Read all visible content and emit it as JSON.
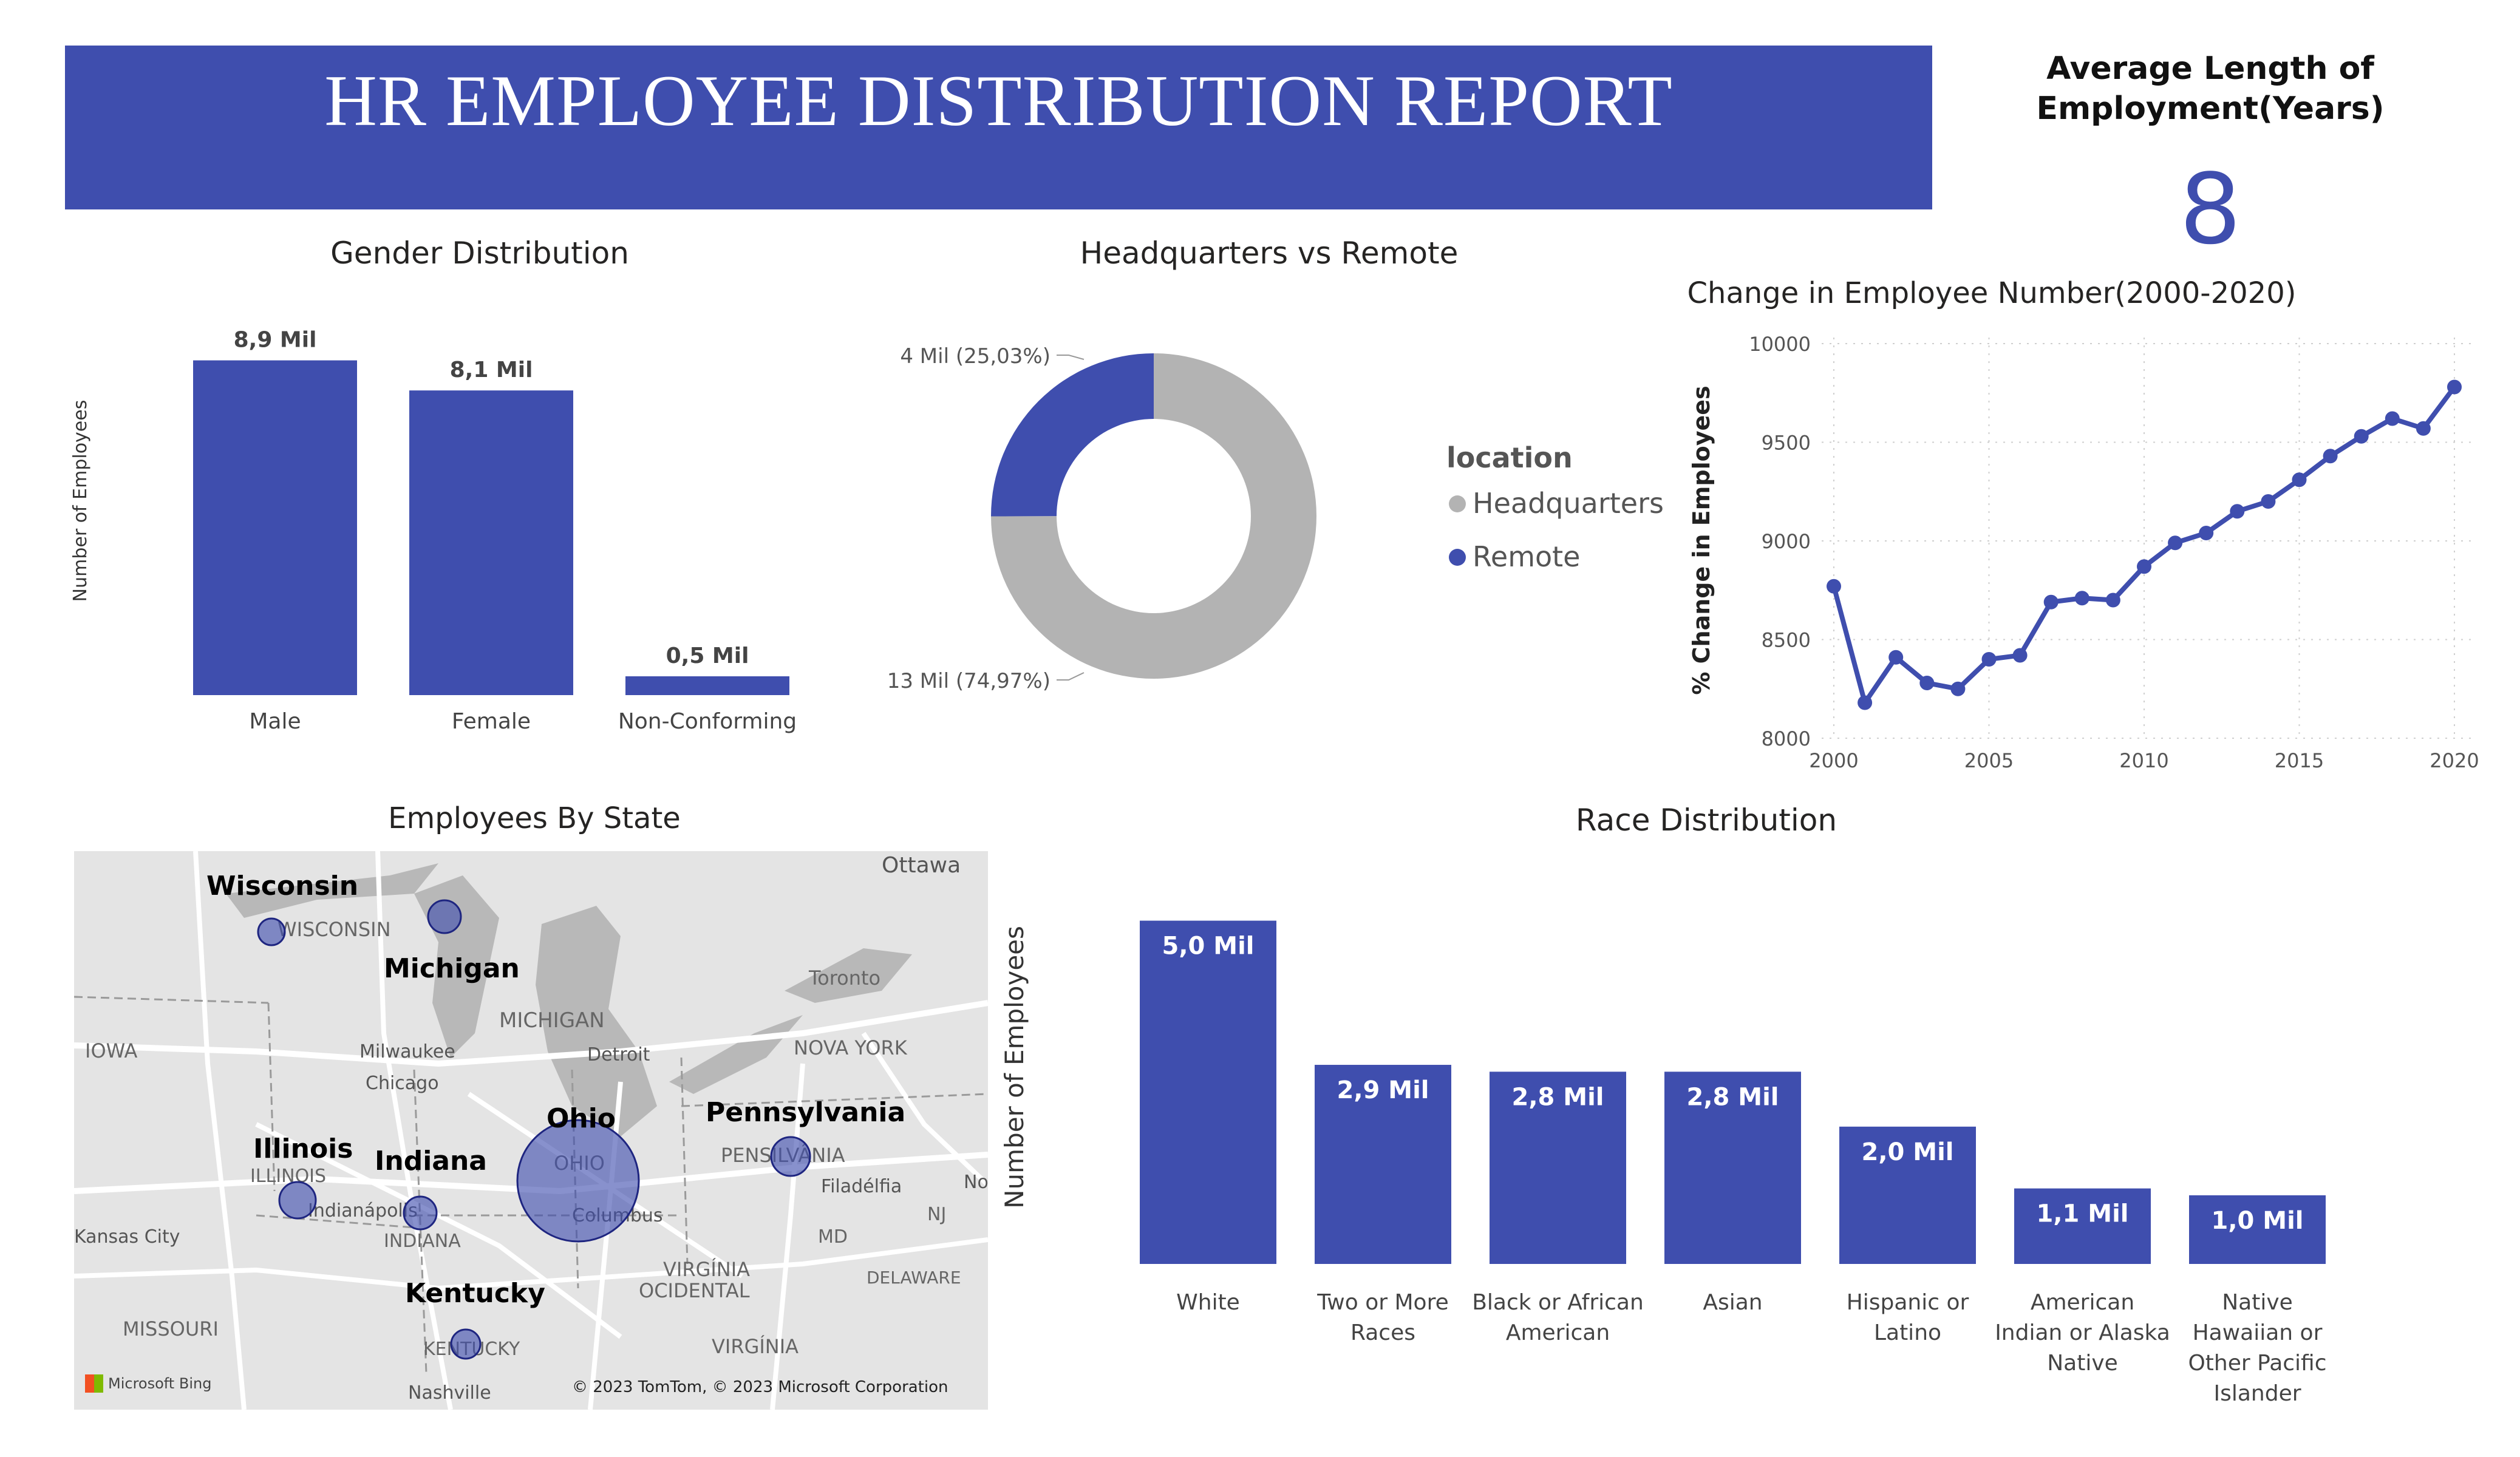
{
  "header": {
    "title": "HR EMPLOYEE DISTRIBUTION REPORT"
  },
  "kpi": {
    "label_line1": "Average Length of",
    "label_line2": "Employment(Years)",
    "value": "8"
  },
  "colors": {
    "accent": "#3f4eae",
    "gray": "#b3b3b3",
    "banner": "#3f4eae"
  },
  "chart_data": [
    {
      "id": "gender",
      "type": "bar",
      "title": "Gender Distribution",
      "ylabel": "Number of Employees",
      "categories": [
        "Male",
        "Female",
        "Non-Conforming"
      ],
      "values": [
        8.9,
        8.1,
        0.5
      ],
      "data_labels": [
        "8,9 Mil",
        "8,1 Mil",
        "0,5 Mil"
      ],
      "unit": "Mil",
      "ylim": [
        0,
        9.2
      ]
    },
    {
      "id": "location",
      "type": "pie",
      "title": "Headquarters vs Remote",
      "legend_title": "location",
      "legend_position": "right",
      "slices": [
        {
          "name": "Headquarters",
          "value": 13,
          "percent": 74.97,
          "label": "13 Mil (74,97%)",
          "color": "#b3b3b3"
        },
        {
          "name": "Remote",
          "value": 4,
          "percent": 25.03,
          "label": "4 Mil (25,03%)",
          "color": "#3f4eae"
        }
      ]
    },
    {
      "id": "employee_change",
      "type": "line",
      "title": "Change in Employee Number(2000-2020)",
      "ylabel": "% Change in Employees",
      "x": [
        2000,
        2001,
        2002,
        2003,
        2004,
        2005,
        2006,
        2007,
        2008,
        2009,
        2010,
        2011,
        2012,
        2013,
        2014,
        2015,
        2016,
        2017,
        2018,
        2019,
        2020
      ],
      "values": [
        8770,
        8180,
        8410,
        8280,
        8250,
        8400,
        8420,
        8690,
        8710,
        8700,
        8870,
        8990,
        9040,
        9150,
        9200,
        9310,
        9430,
        9530,
        9620,
        9570,
        9780
      ],
      "xticks": [
        2000,
        2005,
        2010,
        2015,
        2020
      ],
      "yticks": [
        8000,
        8500,
        9000,
        9500,
        10000
      ],
      "ylim": [
        8000,
        10000
      ],
      "grid": true
    },
    {
      "id": "race",
      "type": "bar",
      "title": "Race Distribution",
      "ylabel": "Number of Employees",
      "categories": [
        [
          "White"
        ],
        [
          "Two or More",
          "Races"
        ],
        [
          "Black or African",
          "American"
        ],
        [
          "Asian"
        ],
        [
          "Hispanic or",
          "Latino"
        ],
        [
          "American",
          "Indian or Alaska",
          "Native"
        ],
        [
          "Native",
          "Hawaiian or",
          "Other Pacific",
          "Islander"
        ]
      ],
      "values": [
        5.0,
        2.9,
        2.8,
        2.8,
        2.0,
        1.1,
        1.0
      ],
      "data_labels": [
        "5,0 Mil",
        "2,9 Mil",
        "2,8 Mil",
        "2,8 Mil",
        "2,0 Mil",
        "1,1 Mil",
        "1,0 Mil"
      ],
      "unit": "Mil",
      "ylim": [
        0,
        5.5
      ]
    }
  ],
  "map": {
    "title": "Employees By State",
    "attribution": "© 2023 TomTom, © 2023 Microsoft Corporation",
    "provider": "Microsoft Bing",
    "bubble_labels": [
      "Wisconsin",
      "Michigan",
      "Illinois",
      "Indiana",
      "Ohio",
      "Pennsylvania",
      "Kentucky"
    ],
    "base_labels": [
      "Ottawa",
      "WISCONSIN",
      "Toronto",
      "MICHIGAN",
      "IOWA",
      "Milwaukee",
      "Chicago",
      "Detroit",
      "NOVA YORK",
      "ILLINOIS",
      "OHIO",
      "PENSILVÂNIA",
      "Indianápolis",
      "Columbus",
      "Filadélfia",
      "Kansas City",
      "INDIANA",
      "VIRGÍNIA OCIDENTAL",
      "MD",
      "NJ",
      "DELAWARE",
      "MISSOURI",
      "KENTUCKY",
      "VIRGÍNIA",
      "Nashville",
      "No"
    ]
  }
}
